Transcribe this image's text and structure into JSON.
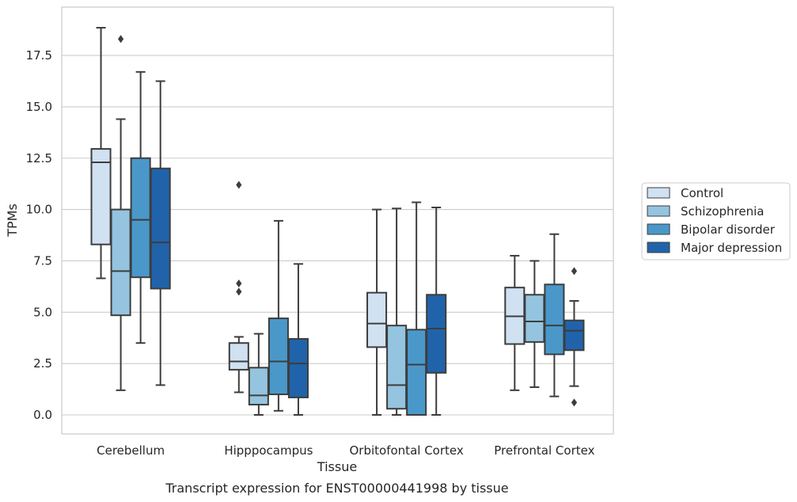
{
  "caption": "Transcript expression for ENST00000441998 by tissue",
  "chart_data": {
    "type": "box",
    "xlabel": "Tissue",
    "ylabel": "TPMs",
    "ylim": [
      -0.9,
      19.8
    ],
    "yticks": [
      "0.0",
      "2.5",
      "5.0",
      "7.5",
      "10.0",
      "12.5",
      "15.0",
      "17.5"
    ],
    "ytick_values": [
      0,
      2.5,
      5,
      7.5,
      10,
      12.5,
      15,
      17.5
    ],
    "grid": "horizontal",
    "legend_position": "right",
    "categories": [
      "Cerebellum",
      "Hipppocampus",
      "Orbitofontal Cortex",
      "Prefrontal Cortex"
    ],
    "series": [
      {
        "name": "Control",
        "color": "#d0e1f2",
        "boxes": [
          {
            "whislo": 6.65,
            "q1": 8.3,
            "med": 12.3,
            "q3": 12.95,
            "whishi": 18.85,
            "fliers": []
          },
          {
            "whislo": 1.1,
            "q1": 2.2,
            "med": 2.6,
            "q3": 3.5,
            "whishi": 3.8,
            "fliers": [
              11.2,
              6.4,
              6.0
            ]
          },
          {
            "whislo": 0.0,
            "q1": 3.3,
            "med": 4.45,
            "q3": 5.95,
            "whishi": 10.0,
            "fliers": []
          },
          {
            "whislo": 1.2,
            "q1": 3.45,
            "med": 4.8,
            "q3": 6.2,
            "whishi": 7.75,
            "fliers": []
          }
        ]
      },
      {
        "name": "Schizophrenia",
        "color": "#94c4df",
        "boxes": [
          {
            "whislo": 1.2,
            "q1": 4.85,
            "med": 7.0,
            "q3": 10.0,
            "whishi": 14.4,
            "fliers": [
              18.3
            ]
          },
          {
            "whislo": 0.0,
            "q1": 0.5,
            "med": 0.95,
            "q3": 2.3,
            "whishi": 3.95,
            "fliers": []
          },
          {
            "whislo": 0.0,
            "q1": 0.3,
            "med": 1.45,
            "q3": 4.35,
            "whishi": 10.05,
            "fliers": []
          },
          {
            "whislo": 1.35,
            "q1": 3.55,
            "med": 4.55,
            "q3": 5.85,
            "whishi": 7.5,
            "fliers": []
          }
        ]
      },
      {
        "name": "Bipolar disorder",
        "color": "#4a98c9",
        "boxes": [
          {
            "whislo": 3.5,
            "q1": 6.7,
            "med": 9.5,
            "q3": 12.5,
            "whishi": 16.7,
            "fliers": []
          },
          {
            "whislo": 0.2,
            "q1": 1.0,
            "med": 2.6,
            "q3": 4.7,
            "whishi": 9.45,
            "fliers": []
          },
          {
            "whislo": 0.0,
            "q1": 0.0,
            "med": 2.45,
            "q3": 4.15,
            "whishi": 10.35,
            "fliers": []
          },
          {
            "whislo": 0.9,
            "q1": 2.95,
            "med": 4.35,
            "q3": 6.35,
            "whishi": 8.8,
            "fliers": []
          }
        ]
      },
      {
        "name": "Major depression",
        "color": "#2163aa",
        "boxes": [
          {
            "whislo": 1.45,
            "q1": 6.15,
            "med": 8.4,
            "q3": 12.0,
            "whishi": 16.25,
            "fliers": []
          },
          {
            "whislo": 0.0,
            "q1": 0.85,
            "med": 2.5,
            "q3": 3.7,
            "whishi": 7.35,
            "fliers": []
          },
          {
            "whislo": 0.0,
            "q1": 2.05,
            "med": 4.2,
            "q3": 5.85,
            "whishi": 10.1,
            "fliers": []
          },
          {
            "whislo": 1.4,
            "q1": 3.15,
            "med": 4.1,
            "q3": 4.6,
            "whishi": 5.55,
            "fliers": [
              7.0,
              0.6
            ]
          }
        ]
      }
    ]
  }
}
